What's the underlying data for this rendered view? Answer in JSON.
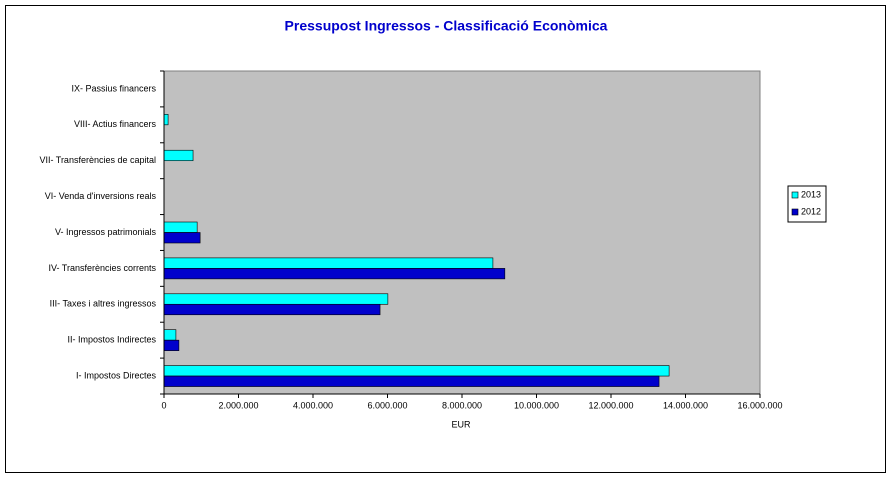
{
  "chart_data": {
    "type": "hbar",
    "title": "Pressupost Ingressos - Classificació Econòmica",
    "xlabel": "EUR",
    "categories": [
      "I- Impostos Directes",
      "II- Impostos Indirectes",
      "III- Taxes i altres ingressos",
      "IV- Transferències corrents",
      "V- Ingressos patrimonials",
      "VI- Venda d'inversions reals",
      "VII- Transferències de capital",
      "VIII- Actius financers",
      "IX- Passius financers"
    ],
    "series": [
      {
        "name": "2013",
        "color": "#00ffff",
        "values": [
          13560000,
          320000,
          6010000,
          8830000,
          890000,
          0,
          780000,
          110000,
          0
        ]
      },
      {
        "name": "2012",
        "color": "#0000cc",
        "values": [
          13290000,
          400000,
          5800000,
          9150000,
          970000,
          0,
          0,
          0,
          0
        ]
      }
    ],
    "xlim": [
      0,
      16000000
    ],
    "xticks": [
      0,
      {
        "value": 2000000,
        "label": "2.000.000"
      },
      {
        "value": 4000000,
        "label": "4.000.000"
      },
      {
        "value": 6000000,
        "label": "6.000.000"
      },
      {
        "value": 8000000,
        "label": "8.000.000"
      },
      {
        "value": 10000000,
        "label": "10.000.000"
      },
      {
        "value": 12000000,
        "label": "12.000.000"
      },
      {
        "value": 14000000,
        "label": "14.000.000"
      },
      {
        "value": 16000000,
        "label": "16.000.000"
      }
    ],
    "legend": "right",
    "plot_background": "#c0c0c0"
  }
}
